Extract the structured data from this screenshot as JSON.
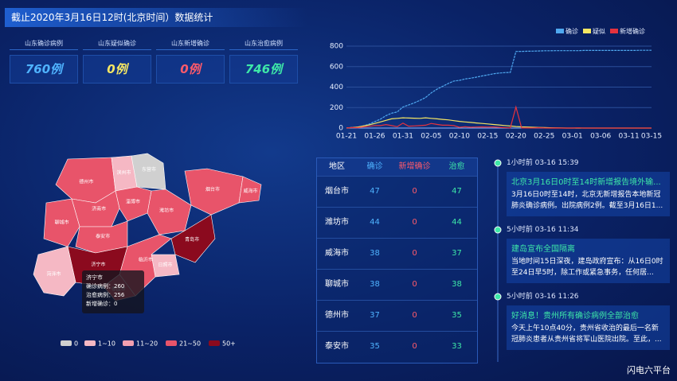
{
  "header": {
    "title": "截止2020年3月16日12时(北京时间）数据统计"
  },
  "stats": [
    {
      "label": "山东确诊病例",
      "value": "760例",
      "color": "#4fb3ff"
    },
    {
      "label": "山东疑似确诊",
      "value": "0例",
      "color": "#f5e663"
    },
    {
      "label": "山东新增确诊",
      "value": "0例",
      "color": "#ff5a6a"
    },
    {
      "label": "山东治愈病例",
      "value": "746例",
      "color": "#3ee8a8"
    }
  ],
  "chart_data": {
    "type": "line",
    "categories": [
      "01-21",
      null,
      null,
      null,
      null,
      "01-26",
      null,
      null,
      null,
      null,
      "01-31",
      null,
      null,
      null,
      null,
      "02-05",
      null,
      null,
      null,
      null,
      "02-10",
      null,
      null,
      null,
      null,
      "02-15",
      null,
      null,
      null,
      null,
      "02-20",
      null,
      null,
      null,
      null,
      "02-25",
      null,
      null,
      null,
      null,
      "03-01",
      null,
      null,
      null,
      null,
      "03-06",
      null,
      null,
      null,
      null,
      "03-11",
      null,
      null,
      null,
      "03-15"
    ],
    "series": [
      {
        "name": "确诊",
        "color": "#4fa8f0",
        "values": [
          1,
          6,
          9,
          21,
          38,
          63,
          87,
          121,
          145,
          158,
          206,
          225,
          246,
          270,
          298,
          343,
          379,
          407,
          435,
          459,
          466,
          479,
          487,
          497,
          509,
          519,
          530,
          537,
          541,
          543,
          748,
          749,
          750,
          751,
          753,
          755,
          755,
          756,
          756,
          756,
          756,
          756,
          758,
          758,
          758,
          758,
          758,
          758,
          758,
          758,
          758,
          758,
          760,
          760,
          760
        ]
      },
      {
        "name": "疑似",
        "color": "#f5e663",
        "values": [
          0,
          5,
          10,
          20,
          30,
          45,
          60,
          75,
          90,
          95,
          100,
          98,
          96,
          95,
          100,
          95,
          90,
          85,
          80,
          72,
          65,
          60,
          55,
          50,
          45,
          40,
          35,
          30,
          25,
          20,
          15,
          12,
          10,
          8,
          6,
          5,
          3,
          2,
          1,
          0,
          0,
          0,
          0,
          0,
          0,
          0,
          0,
          0,
          0,
          0,
          0,
          0,
          0,
          0,
          0
        ]
      },
      {
        "name": "新增确诊",
        "color": "#e5323e",
        "values": [
          1,
          5,
          3,
          12,
          17,
          25,
          24,
          34,
          24,
          13,
          48,
          19,
          21,
          24,
          28,
          45,
          36,
          28,
          28,
          24,
          7,
          13,
          8,
          10,
          12,
          10,
          11,
          7,
          4,
          2,
          205,
          1,
          1,
          1,
          3,
          1,
          0,
          1,
          0,
          0,
          0,
          2,
          0,
          0,
          0,
          0,
          0,
          0,
          0,
          0,
          0,
          0,
          0,
          0,
          0
        ]
      }
    ],
    "ylim": [
      0,
      800
    ],
    "yticks": [
      0,
      200,
      400,
      600,
      800
    ],
    "grid": true,
    "legend": "top-right"
  },
  "map": {
    "regions": [
      {
        "name": "德州市",
        "color": "#e8546a"
      },
      {
        "name": "滨州市",
        "color": "#f5b8c4"
      },
      {
        "name": "东营市",
        "color": "#d0d0d0"
      },
      {
        "name": "烟台市",
        "color": "#e8546a"
      },
      {
        "name": "威海市",
        "color": "#e8546a"
      },
      {
        "name": "潍坊市",
        "color": "#e8546a"
      },
      {
        "name": "淄博市",
        "color": "#e8546a"
      },
      {
        "name": "济南市",
        "color": "#e8546a"
      },
      {
        "name": "聊城市",
        "color": "#e8546a"
      },
      {
        "name": "泰安市",
        "color": "#e8546a"
      },
      {
        "name": "青岛市",
        "color": "#8b0a1e"
      },
      {
        "name": "日照市",
        "color": "#f5b8c4"
      },
      {
        "name": "临沂市",
        "color": "#e8546a"
      },
      {
        "name": "济宁市",
        "color": "#8b0a1e"
      },
      {
        "name": "菏泽市",
        "color": "#f5b8c4"
      },
      {
        "name": "枣庄市",
        "color": "#e8546a"
      }
    ],
    "tooltip": {
      "title": "济宁市",
      "rows": [
        {
          "label": "确诊病例：",
          "value": 260
        },
        {
          "label": "治愈病例：",
          "value": 256
        },
        {
          "label": "新增确诊：",
          "value": 0
        }
      ]
    },
    "legend": [
      {
        "label": "0",
        "color": "#d0d0d0"
      },
      {
        "label": "1~10",
        "color": "#f5b8c4"
      },
      {
        "label": "11~20",
        "color": "#f29fb0"
      },
      {
        "label": "21~50",
        "color": "#e8546a"
      },
      {
        "label": "50+",
        "color": "#8b0a1e"
      }
    ]
  },
  "table": {
    "headers": [
      {
        "text": "地区",
        "color": "#ffffff"
      },
      {
        "text": "确诊",
        "color": "#4fb3ff"
      },
      {
        "text": "新增确诊",
        "color": "#ff5a6a"
      },
      {
        "text": "治愈",
        "color": "#3ee8a8"
      }
    ],
    "rows": [
      [
        "烟台市",
        47,
        0,
        47
      ],
      [
        "潍坊市",
        44,
        0,
        44
      ],
      [
        "威海市",
        38,
        0,
        37
      ],
      [
        "聊城市",
        38,
        0,
        38
      ],
      [
        "德州市",
        37,
        0,
        35
      ],
      [
        "泰安市",
        35,
        0,
        33
      ]
    ]
  },
  "news": [
    {
      "time": "1小时前 03-16 15:39",
      "title": "北京3月16日0时至14时新增报告境外输...",
      "body": "3月16日0时至14时，北京无新增报告本地新冠肺炎确诊病例。出院病例2例。截至3月16日1..."
    },
    {
      "time": "5小时前 03-16 11:34",
      "title": "建岛宣布全国隔离",
      "body": "当地时间15日深夜，建岛政府宣布：从16日0时至24日早5时，除工作或紧急事务，任何居..."
    },
    {
      "time": "5小时前 03-16 11:26",
      "title": "好消息！贵州所有确诊病例全部治愈",
      "body": "今天上午10点40分，贵州省收治的最后一名新冠肺炎患者从贵州省将军山医院出院。至此，..."
    }
  ],
  "footer": "闪电六平台"
}
